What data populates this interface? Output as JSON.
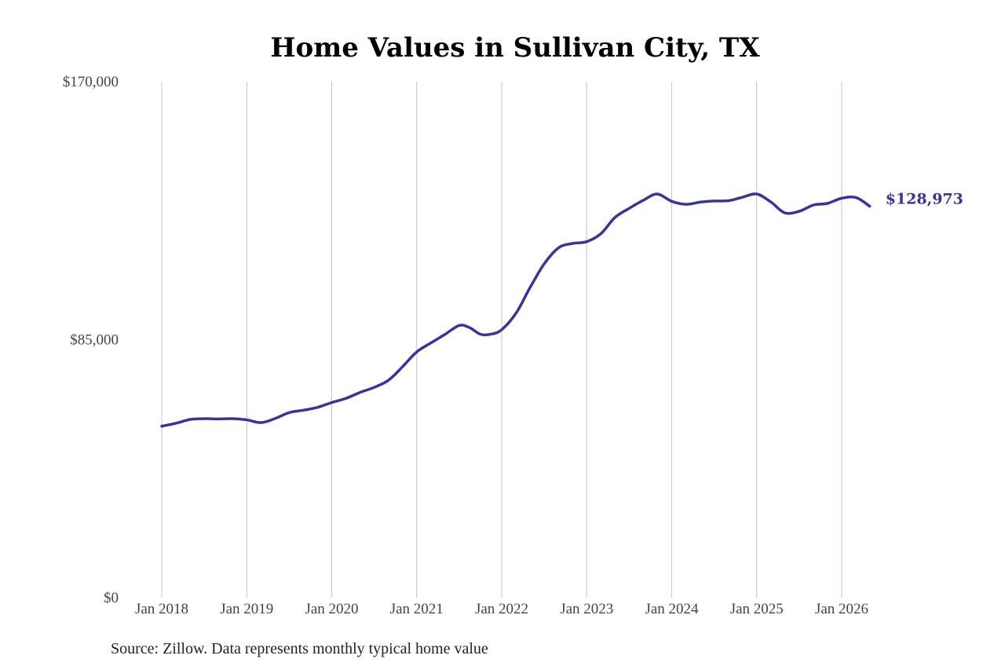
{
  "chart_data": {
    "type": "line",
    "title": "Home Values in Sullivan City, TX",
    "xlabel": "",
    "ylabel": "",
    "ylim": [
      0,
      170000
    ],
    "y_ticks": [
      {
        "value": 0,
        "label": "$0"
      },
      {
        "value": 85000,
        "label": "$85,000"
      },
      {
        "value": 170000,
        "label": "$170,000"
      }
    ],
    "x_ticks": [
      {
        "value": 2018,
        "label": "Jan 2018"
      },
      {
        "value": 2019,
        "label": "Jan 2019"
      },
      {
        "value": 2020,
        "label": "Jan 2020"
      },
      {
        "value": 2021,
        "label": "Jan 2021"
      },
      {
        "value": 2022,
        "label": "Jan 2022"
      },
      {
        "value": 2023,
        "label": "Jan 2023"
      },
      {
        "value": 2024,
        "label": "Jan 2024"
      },
      {
        "value": 2025,
        "label": "Jan 2025"
      },
      {
        "value": 2026,
        "label": "Jan 2026"
      }
    ],
    "grid": "vertical",
    "series": [
      {
        "color": "#3a3592",
        "points": [
          [
            2018.0,
            56500
          ],
          [
            2018.17,
            57500
          ],
          [
            2018.33,
            58700
          ],
          [
            2018.5,
            59000
          ],
          [
            2018.67,
            58900
          ],
          [
            2018.83,
            59000
          ],
          [
            2019.0,
            58600
          ],
          [
            2019.17,
            57700
          ],
          [
            2019.33,
            59000
          ],
          [
            2019.5,
            61000
          ],
          [
            2019.67,
            61800
          ],
          [
            2019.83,
            62700
          ],
          [
            2020.0,
            64300
          ],
          [
            2020.17,
            65700
          ],
          [
            2020.33,
            67600
          ],
          [
            2020.5,
            69300
          ],
          [
            2020.67,
            71700
          ],
          [
            2020.83,
            76000
          ],
          [
            2021.0,
            81000
          ],
          [
            2021.17,
            84000
          ],
          [
            2021.33,
            86700
          ],
          [
            2021.5,
            89700
          ],
          [
            2021.62,
            89000
          ],
          [
            2021.75,
            86800
          ],
          [
            2021.87,
            86800
          ],
          [
            2022.0,
            88300
          ],
          [
            2022.17,
            93800
          ],
          [
            2022.33,
            102000
          ],
          [
            2022.5,
            110000
          ],
          [
            2022.67,
            115300
          ],
          [
            2022.83,
            116700
          ],
          [
            2023.0,
            117300
          ],
          [
            2023.17,
            120000
          ],
          [
            2023.33,
            125200
          ],
          [
            2023.5,
            128300
          ],
          [
            2023.67,
            131000
          ],
          [
            2023.83,
            133000
          ],
          [
            2024.0,
            130600
          ],
          [
            2024.17,
            129600
          ],
          [
            2024.33,
            130300
          ],
          [
            2024.5,
            130700
          ],
          [
            2024.67,
            130800
          ],
          [
            2024.83,
            131900
          ],
          [
            2025.0,
            133000
          ],
          [
            2025.17,
            130300
          ],
          [
            2025.33,
            126800
          ],
          [
            2025.5,
            127300
          ],
          [
            2025.67,
            129400
          ],
          [
            2025.83,
            129900
          ],
          [
            2026.0,
            131600
          ],
          [
            2026.17,
            131800
          ],
          [
            2026.33,
            128973
          ]
        ]
      }
    ],
    "end_label": "$128,973"
  },
  "source_note": "Source: Zillow. Data represents monthly typical home value"
}
